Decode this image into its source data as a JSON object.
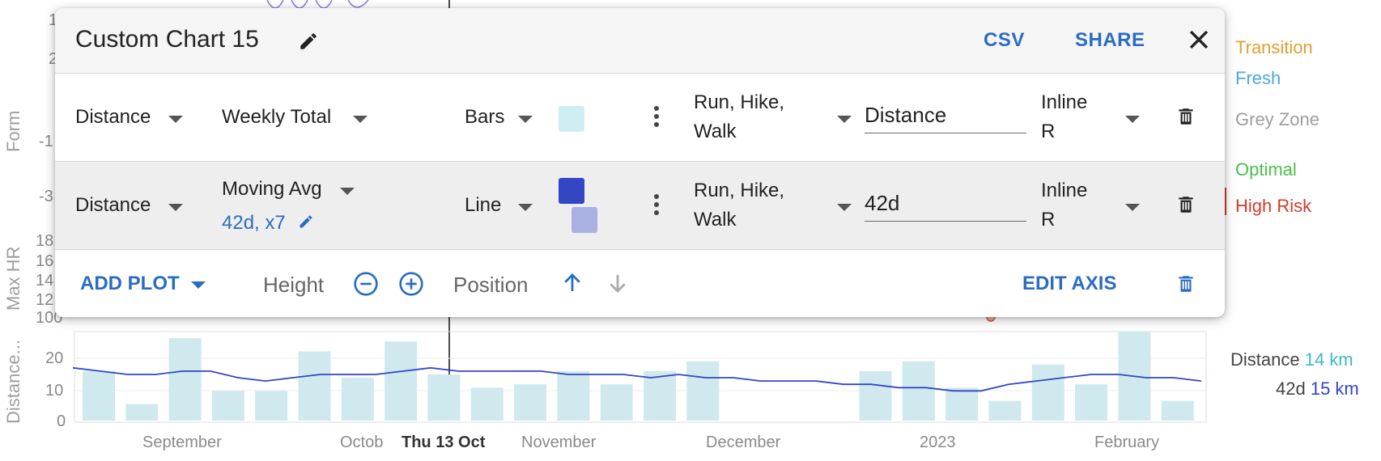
{
  "background": {
    "axis_titles": {
      "form": "Form",
      "max_hr": "Max HR",
      "distance": "Distance..."
    },
    "form_ticks": [
      "1",
      "2",
      "-1",
      "-3"
    ],
    "max_hr_ticks": [
      "18",
      "16",
      "14",
      "12",
      "100"
    ],
    "distance_ticks": [
      "20",
      "10",
      "0"
    ],
    "legend_top": [
      {
        "label": "Transition",
        "color": "#e0a030"
      },
      {
        "label": "Fresh",
        "color": "#4aa8e0"
      },
      {
        "label": "Grey Zone",
        "color": "#9e9e9e"
      },
      {
        "label": "Optimal",
        "color": "#49c04a"
      },
      {
        "label": "High Risk",
        "color": "#d63a2a"
      }
    ],
    "legend_bottom": [
      {
        "label": "Distance",
        "value": "14 km",
        "value_color": "#3fb7c8"
      },
      {
        "label": "42d",
        "value": "15 km",
        "value_color": "#3346c4"
      }
    ],
    "x_labels": [
      "September",
      "Octob",
      "Thu 13 Oct",
      "November",
      "December",
      "2023",
      "February"
    ],
    "chart_data": {
      "type": "bar",
      "ylim": [
        0,
        27
      ],
      "grid": true,
      "series": [
        {
          "name": "Distance",
          "type": "bar",
          "color": "#cfe9ee",
          "values": [
            15,
            5,
            25,
            9,
            9,
            21,
            13,
            24,
            14,
            10,
            11,
            15,
            11,
            15,
            18,
            0,
            0,
            0,
            15,
            18,
            10,
            6,
            17,
            11,
            27,
            6
          ]
        },
        {
          "name": "42d",
          "type": "line",
          "color": "#3346c4",
          "values": [
            16,
            15,
            14,
            14,
            15,
            15,
            13,
            12,
            13,
            14,
            14,
            14,
            15,
            16,
            15,
            15,
            15,
            15,
            14,
            14,
            14,
            13,
            14,
            13,
            13,
            12,
            12,
            12,
            11,
            11,
            10,
            10,
            9,
            9,
            11,
            12,
            13,
            14,
            14,
            13,
            13,
            12
          ]
        }
      ]
    }
  },
  "dialog": {
    "title": "Custom Chart 15",
    "csv_label": "CSV",
    "share_label": "SHARE",
    "rows": [
      {
        "metric": "Distance",
        "aggregation": "Weekly Total",
        "aggregation_sub": "",
        "style": "Bars",
        "color": "#cfeef3",
        "activities_line1": "Run, Hike,",
        "activities_line2": "Walk",
        "label_value": "Distance",
        "axis_line1": "Inline",
        "axis_line2": "R"
      },
      {
        "metric": "Distance",
        "aggregation": "Moving Avg",
        "aggregation_sub": "42d, x7",
        "style": "Line",
        "color": "#3346c4",
        "color2": "#a9b1e2",
        "activities_line1": "Run, Hike,",
        "activities_line2": "Walk",
        "label_value": "42d",
        "axis_line1": "Inline",
        "axis_line2": "R"
      }
    ],
    "footer": {
      "add_plot_label": "ADD PLOT",
      "height_label": "Height",
      "position_label": "Position",
      "edit_axis_label": "EDIT AXIS"
    }
  }
}
